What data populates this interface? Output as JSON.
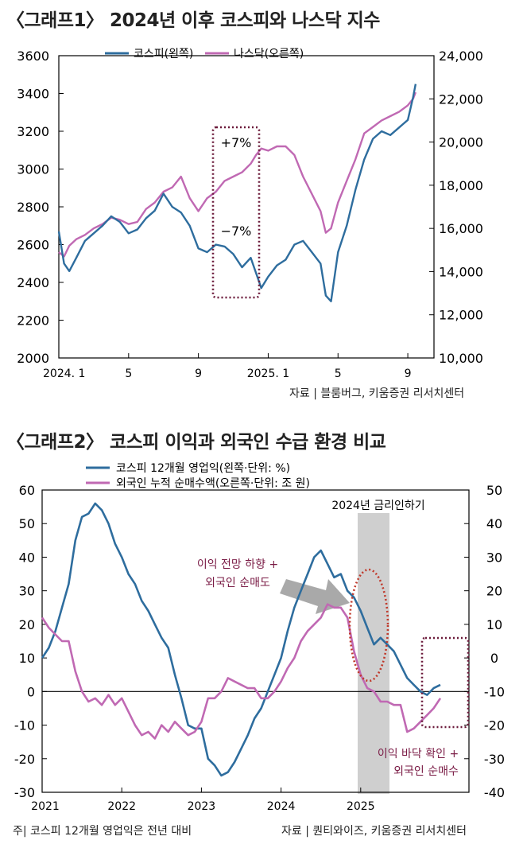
{
  "chart1": {
    "title": "〈그래프1〉 2024년 이후 코스피와 나스닥 지수",
    "source": "자료 | 블룸버그, 키움증권 리서치센터",
    "annotations": [
      "+7%",
      "−7%"
    ],
    "colors": {
      "kospi": "#2e6d9e",
      "nasdaq": "#c069b3",
      "box": "#6b1a3a"
    }
  },
  "chart2": {
    "title": "〈그래프2〉 코스피 이익과 외국인 수급 환경 비교",
    "note": "주| 코스피 12개월 영업익은 전년 대비",
    "source": "자료 | 퀀티와이즈, 키움증권 리서치센터",
    "shade_label": "2024년 금리인하기",
    "annotation_1": [
      "이익 전망 하향 +",
      "외국인 순매도"
    ],
    "annotation_2": [
      "이익 바닥 확인 +",
      "외국인 순매수"
    ],
    "colors": {
      "profit": "#2e6d9e",
      "foreign": "#c069b3",
      "ellipse": "#c0392b",
      "box": "#6b1a3a",
      "annot": "#7a1b45"
    }
  },
  "chart_data": [
    {
      "type": "line",
      "title": "〈그래프1〉 2024년 이후 코스피와 나스닥 지수",
      "x_ticks": [
        "2024. 1",
        "5",
        "9",
        "2025. 1",
        "5",
        "9"
      ],
      "x_tick_positions": [
        0,
        4,
        8,
        12,
        16,
        20
      ],
      "y_left": {
        "ticks": [
          "3600",
          "3400",
          "3200",
          "3000",
          "2800",
          "2600",
          "2400",
          "2200",
          "2000"
        ],
        "range": [
          2000,
          3600
        ]
      },
      "y_right": {
        "ticks": [
          "24,000",
          "22,000",
          "20,000",
          "18,000",
          "16,000",
          "14,000",
          "12,000",
          "10,000"
        ],
        "range": [
          10000,
          24000
        ]
      },
      "series": [
        {
          "name": "코스피(왼쪽)",
          "axis": "left",
          "x": [
            0,
            0.3,
            0.6,
            1,
            1.5,
            2,
            2.5,
            3,
            3.5,
            4,
            4.5,
            5,
            5.5,
            6,
            6.5,
            7,
            7.5,
            8,
            8.5,
            9,
            9.5,
            10,
            10.5,
            11,
            11.3,
            11.6,
            12,
            12.5,
            13,
            13.5,
            14,
            14.5,
            15,
            15.3,
            15.6,
            16,
            16.5,
            17,
            17.5,
            18,
            18.5,
            19,
            19.5,
            20,
            20.3,
            20.45
          ],
          "values": [
            2670,
            2500,
            2460,
            2530,
            2620,
            2660,
            2700,
            2750,
            2720,
            2660,
            2680,
            2740,
            2780,
            2870,
            2800,
            2770,
            2700,
            2580,
            2560,
            2600,
            2590,
            2550,
            2480,
            2530,
            2450,
            2370,
            2430,
            2490,
            2520,
            2600,
            2620,
            2560,
            2500,
            2330,
            2300,
            2560,
            2700,
            2890,
            3050,
            3160,
            3200,
            3180,
            3220,
            3260,
            3380,
            3450
          ]
        },
        {
          "name": "나스닥(오른쪽)",
          "axis": "right",
          "x": [
            0,
            0.3,
            0.6,
            1,
            1.5,
            2,
            2.5,
            3,
            3.5,
            4,
            4.5,
            5,
            5.5,
            6,
            6.5,
            7,
            7.5,
            8,
            8.5,
            9,
            9.5,
            10,
            10.5,
            11,
            11.3,
            11.6,
            12,
            12.5,
            13,
            13.5,
            14,
            14.5,
            15,
            15.3,
            15.6,
            16,
            16.5,
            17,
            17.5,
            18,
            18.5,
            19,
            19.5,
            20,
            20.3,
            20.45
          ],
          "values": [
            14900,
            14700,
            15200,
            15500,
            15700,
            16000,
            16200,
            16500,
            16400,
            16200,
            16300,
            16900,
            17200,
            17700,
            17900,
            18400,
            17400,
            16800,
            17400,
            17700,
            18200,
            18400,
            18600,
            19000,
            19400,
            19700,
            19600,
            19800,
            19800,
            19400,
            18400,
            17600,
            16800,
            15800,
            16000,
            17200,
            18200,
            19200,
            20400,
            20700,
            21000,
            21200,
            21400,
            21700,
            22000,
            22300
          ]
        }
      ]
    },
    {
      "type": "line",
      "title": "〈그래프2〉 코스피 이익과 외국인 수급 환경 비교",
      "x_ticks": [
        "2021",
        "2022",
        "2023",
        "2024",
        "2025"
      ],
      "x_tick_positions": [
        0,
        12,
        24,
        36,
        48
      ],
      "y_left": {
        "ticks": [
          "60",
          "50",
          "40",
          "30",
          "20",
          "10",
          "0",
          "-10",
          "-20",
          "-30"
        ],
        "range": [
          -30,
          60
        ]
      },
      "y_right": {
        "ticks": [
          "50",
          "40",
          "30",
          "20",
          "10",
          "0",
          "-10",
          "-20",
          "-30",
          "-40"
        ],
        "range": [
          -40,
          50
        ]
      },
      "shaded_range": [
        46,
        49
      ],
      "series": [
        {
          "name": "코스피 12개월 영업익(왼쪽·단위: %)",
          "axis": "left",
          "x": [
            0,
            1,
            2,
            3,
            4,
            5,
            6,
            7,
            8,
            9,
            10,
            11,
            12,
            13,
            14,
            15,
            16,
            17,
            18,
            19,
            20,
            21,
            22,
            23,
            24,
            25,
            26,
            27,
            28,
            29,
            30,
            31,
            32,
            33,
            34,
            35,
            36,
            37,
            38,
            39,
            40,
            41,
            42,
            43,
            44,
            45,
            46,
            47,
            48,
            49,
            50,
            51,
            52,
            53,
            54,
            55,
            56,
            57,
            58,
            59,
            60
          ],
          "values": [
            10,
            13,
            18,
            25,
            32,
            45,
            52,
            53,
            56,
            54,
            50,
            44,
            40,
            35,
            32,
            27,
            24,
            20,
            16,
            13,
            5,
            -2,
            -10,
            -11,
            -11,
            -20,
            -22,
            -25,
            -24,
            -21,
            -17,
            -13,
            -8,
            -5,
            0,
            5,
            10,
            18,
            25,
            30,
            35,
            40,
            42,
            38,
            34,
            35,
            30,
            28,
            24,
            19,
            14,
            16,
            14,
            12,
            8,
            4,
            2,
            0,
            -1,
            1,
            2
          ]
        },
        {
          "name": "외국인 누적 순매수액(오른쪽·단위: 조 원)",
          "axis": "right",
          "x": [
            0,
            1,
            2,
            3,
            4,
            5,
            6,
            7,
            8,
            9,
            10,
            11,
            12,
            13,
            14,
            15,
            16,
            17,
            18,
            19,
            20,
            21,
            22,
            23,
            24,
            25,
            26,
            27,
            28,
            29,
            30,
            31,
            32,
            33,
            34,
            35,
            36,
            37,
            38,
            39,
            40,
            41,
            42,
            43,
            44,
            45,
            46,
            47,
            48,
            49,
            50,
            51,
            52,
            53,
            54,
            55,
            56,
            57,
            58,
            59,
            60
          ],
          "values": [
            12,
            9,
            7,
            5,
            5,
            -4,
            -10,
            -13,
            -12,
            -14,
            -11,
            -14,
            -12,
            -16,
            -20,
            -23,
            -22,
            -24,
            -20,
            -22,
            -19,
            -21,
            -23,
            -22,
            -19,
            -12,
            -12,
            -10,
            -6,
            -7,
            -8,
            -9,
            -9,
            -12,
            -12,
            -10,
            -7,
            -3,
            0,
            5,
            8,
            10,
            12,
            16,
            15,
            15,
            12,
            2,
            -5,
            -9,
            -10,
            -13,
            -13,
            -14,
            -14,
            -22,
            -21,
            -19,
            -17,
            -15,
            -12
          ]
        }
      ]
    }
  ]
}
